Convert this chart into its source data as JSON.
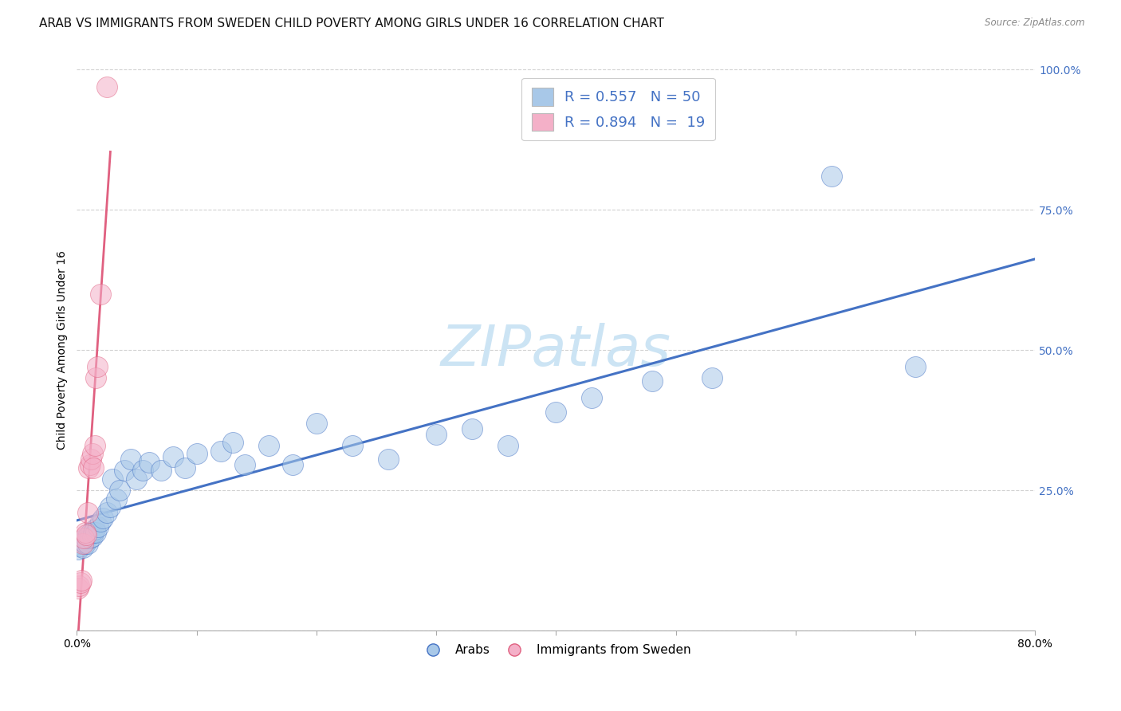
{
  "title": "ARAB VS IMMIGRANTS FROM SWEDEN CHILD POVERTY AMONG GIRLS UNDER 16 CORRELATION CHART",
  "source": "Source: ZipAtlas.com",
  "ylabel": "Child Poverty Among Girls Under 16",
  "watermark": "ZIPatlas",
  "xlim": [
    0.0,
    0.8
  ],
  "ylim": [
    0.0,
    1.0
  ],
  "xticks": [
    0.0,
    0.1,
    0.2,
    0.3,
    0.4,
    0.5,
    0.6,
    0.7,
    0.8
  ],
  "yticks": [
    0.0,
    0.25,
    0.5,
    0.75,
    1.0
  ],
  "ytick_labels": [
    "",
    "25.0%",
    "50.0%",
    "75.0%",
    "100.0%"
  ],
  "blue_scatter_x": [
    0.001,
    0.002,
    0.003,
    0.004,
    0.005,
    0.006,
    0.007,
    0.008,
    0.009,
    0.01,
    0.011,
    0.012,
    0.013,
    0.014,
    0.015,
    0.016,
    0.018,
    0.02,
    0.022,
    0.025,
    0.028,
    0.03,
    0.033,
    0.036,
    0.04,
    0.045,
    0.05,
    0.055,
    0.06,
    0.07,
    0.08,
    0.09,
    0.1,
    0.12,
    0.13,
    0.14,
    0.16,
    0.18,
    0.2,
    0.23,
    0.26,
    0.3,
    0.33,
    0.36,
    0.4,
    0.43,
    0.48,
    0.53,
    0.63,
    0.7
  ],
  "blue_scatter_y": [
    0.145,
    0.155,
    0.15,
    0.16,
    0.148,
    0.158,
    0.155,
    0.165,
    0.155,
    0.17,
    0.165,
    0.175,
    0.168,
    0.175,
    0.18,
    0.175,
    0.185,
    0.195,
    0.2,
    0.21,
    0.22,
    0.27,
    0.235,
    0.25,
    0.285,
    0.305,
    0.27,
    0.285,
    0.3,
    0.285,
    0.31,
    0.29,
    0.315,
    0.32,
    0.335,
    0.295,
    0.33,
    0.295,
    0.37,
    0.33,
    0.305,
    0.35,
    0.36,
    0.33,
    0.39,
    0.415,
    0.445,
    0.45,
    0.81,
    0.47
  ],
  "pink_scatter_x": [
    0.001,
    0.002,
    0.003,
    0.004,
    0.005,
    0.006,
    0.007,
    0.008,
    0.009,
    0.01,
    0.011,
    0.012,
    0.013,
    0.014,
    0.015,
    0.016,
    0.017,
    0.02,
    0.025
  ],
  "pink_scatter_y": [
    0.075,
    0.08,
    0.085,
    0.09,
    0.155,
    0.165,
    0.175,
    0.17,
    0.21,
    0.29,
    0.295,
    0.305,
    0.315,
    0.29,
    0.33,
    0.45,
    0.47,
    0.6,
    0.97
  ],
  "blue_color": "#a8c8e8",
  "pink_color": "#f4b0c8",
  "blue_line_color": "#4472c4",
  "pink_line_color": "#e06080",
  "title_fontsize": 11,
  "axis_label_fontsize": 10,
  "tick_fontsize": 10,
  "watermark_fontsize": 52,
  "watermark_color": "#cce4f4",
  "background_color": "#ffffff",
  "source_text": "Source: ZipAtlas.com"
}
